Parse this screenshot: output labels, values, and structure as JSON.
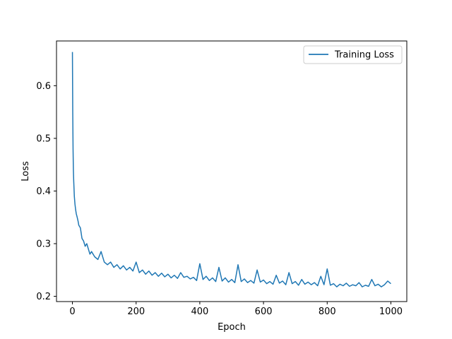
{
  "chart_data": {
    "type": "line",
    "xlabel": "Epoch",
    "ylabel": "Loss",
    "xlim": [
      -50,
      1050
    ],
    "ylim": [
      0.19,
      0.685
    ],
    "xticks": [
      0,
      200,
      400,
      600,
      800,
      1000
    ],
    "yticks": [
      0.2,
      0.3,
      0.4,
      0.5,
      0.6
    ],
    "grid": false,
    "legend_position": "top-right",
    "series": [
      {
        "name": "Training Loss",
        "color": "#1f77b4",
        "x": [
          0,
          1,
          2,
          3,
          4,
          5,
          6,
          8,
          10,
          12,
          15,
          18,
          20,
          25,
          30,
          35,
          40,
          45,
          50,
          55,
          60,
          70,
          80,
          90,
          100,
          110,
          120,
          130,
          140,
          150,
          160,
          170,
          180,
          190,
          200,
          210,
          220,
          230,
          240,
          250,
          260,
          270,
          280,
          290,
          300,
          310,
          320,
          330,
          340,
          350,
          360,
          370,
          380,
          390,
          400,
          410,
          420,
          430,
          440,
          450,
          460,
          470,
          480,
          490,
          500,
          510,
          520,
          530,
          540,
          550,
          560,
          570,
          580,
          590,
          600,
          610,
          620,
          630,
          640,
          650,
          660,
          670,
          680,
          690,
          700,
          710,
          720,
          730,
          740,
          750,
          760,
          770,
          780,
          790,
          800,
          810,
          820,
          830,
          840,
          850,
          860,
          870,
          880,
          890,
          900,
          910,
          920,
          930,
          940,
          950,
          960,
          970,
          980,
          990,
          1000
        ],
        "y": [
          0.664,
          0.55,
          0.48,
          0.44,
          0.42,
          0.405,
          0.39,
          0.375,
          0.365,
          0.357,
          0.35,
          0.342,
          0.335,
          0.33,
          0.31,
          0.305,
          0.295,
          0.3,
          0.29,
          0.28,
          0.285,
          0.275,
          0.27,
          0.285,
          0.265,
          0.26,
          0.265,
          0.255,
          0.26,
          0.252,
          0.258,
          0.25,
          0.255,
          0.248,
          0.265,
          0.245,
          0.25,
          0.242,
          0.248,
          0.24,
          0.245,
          0.238,
          0.244,
          0.237,
          0.242,
          0.235,
          0.24,
          0.234,
          0.245,
          0.236,
          0.238,
          0.233,
          0.236,
          0.23,
          0.262,
          0.232,
          0.238,
          0.23,
          0.235,
          0.228,
          0.255,
          0.229,
          0.235,
          0.227,
          0.232,
          0.226,
          0.26,
          0.228,
          0.233,
          0.226,
          0.23,
          0.225,
          0.25,
          0.227,
          0.231,
          0.224,
          0.228,
          0.223,
          0.24,
          0.225,
          0.229,
          0.222,
          0.245,
          0.224,
          0.228,
          0.221,
          0.232,
          0.223,
          0.227,
          0.222,
          0.226,
          0.22,
          0.238,
          0.222,
          0.252,
          0.221,
          0.224,
          0.218,
          0.223,
          0.22,
          0.225,
          0.219,
          0.222,
          0.22,
          0.226,
          0.218,
          0.221,
          0.219,
          0.232,
          0.22,
          0.223,
          0.218,
          0.222,
          0.229,
          0.224
        ]
      }
    ]
  }
}
